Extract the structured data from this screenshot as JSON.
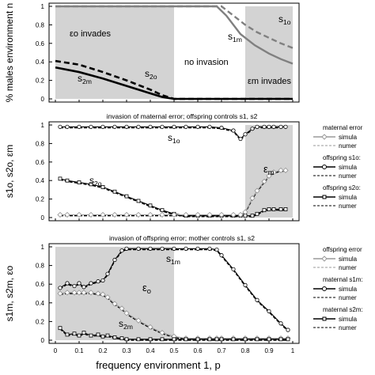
{
  "figure": {
    "xaxis_label": "frequency environment 1, p",
    "x_ticks": [
      "0",
      "0.1",
      "0.2",
      "0.3",
      "0.4",
      "0.5",
      "0.6",
      "0.7",
      "0.8",
      "0.9",
      "1"
    ]
  },
  "chart_data": [
    {
      "type": "line",
      "panel": "top",
      "ylabel": "% males environment n",
      "xlim": [
        0,
        1
      ],
      "ylim": [
        0,
        1
      ],
      "y_ticks": [
        "0",
        "0.2",
        "0.4",
        "0.6",
        "0.8",
        "1"
      ],
      "shaded_regions": [
        [
          0,
          0.5
        ],
        [
          0.8,
          1
        ]
      ],
      "annotations": {
        "eps_o_invades": "εo invades",
        "no_invasion": "no invasion",
        "eps_m_invades": "εm invades"
      },
      "series": [
        {
          "name": "s1o",
          "style": "gray-dashed",
          "x": [
            0,
            0.2,
            0.4,
            0.6,
            0.7,
            0.75,
            0.8,
            0.85,
            0.9,
            0.95,
            1.0
          ],
          "values": [
            1,
            1,
            1,
            1,
            1,
            0.9,
            0.8,
            0.72,
            0.66,
            0.6,
            0.55
          ]
        },
        {
          "name": "s1m",
          "style": "gray-solid",
          "x": [
            0,
            0.2,
            0.4,
            0.6,
            0.68,
            0.72,
            0.78,
            0.84,
            0.9,
            0.95,
            1.0
          ],
          "values": [
            1,
            1,
            1,
            1,
            1,
            0.9,
            0.7,
            0.58,
            0.49,
            0.43,
            0.38
          ]
        },
        {
          "name": "s2o",
          "style": "black-dashed",
          "x": [
            0,
            0.1,
            0.2,
            0.3,
            0.4,
            0.45,
            0.5,
            0.6,
            0.8,
            1.0
          ],
          "values": [
            0.41,
            0.37,
            0.29,
            0.2,
            0.1,
            0.04,
            0.0,
            0.0,
            0.0,
            0.0
          ]
        },
        {
          "name": "s2m",
          "style": "black-solid",
          "x": [
            0,
            0.1,
            0.2,
            0.3,
            0.4,
            0.45,
            0.5,
            0.6,
            0.8,
            1.0
          ],
          "values": [
            0.34,
            0.29,
            0.22,
            0.14,
            0.06,
            0.02,
            0.0,
            0.0,
            0.0,
            0.0
          ]
        }
      ],
      "labels": {
        "s1o": "s1o",
        "s1m": "s1m",
        "s2o": "s2o",
        "s2m": "s2m"
      }
    },
    {
      "type": "line",
      "panel": "middle",
      "title": "invasion of maternal error; offspring controls s1, s2",
      "ylabel": "s1o, s2o, εm",
      "xlim": [
        0,
        1
      ],
      "ylim": [
        0,
        1
      ],
      "y_ticks": [
        "0",
        "0.2",
        "0.4",
        "0.6",
        "0.8",
        "1"
      ],
      "shaded_regions": [
        [
          0.8,
          1
        ]
      ],
      "x": [
        0.02,
        0.05,
        0.1,
        0.15,
        0.2,
        0.25,
        0.3,
        0.35,
        0.4,
        0.45,
        0.5,
        0.55,
        0.6,
        0.65,
        0.7,
        0.75,
        0.78,
        0.8,
        0.83,
        0.85,
        0.88,
        0.9,
        0.92,
        0.95,
        0.97
      ],
      "series": [
        {
          "name": "s1o",
          "values": [
            0.97,
            0.97,
            0.97,
            0.97,
            0.97,
            0.97,
            0.97,
            0.97,
            0.97,
            0.97,
            0.97,
            0.97,
            0.97,
            0.97,
            0.96,
            0.93,
            0.84,
            0.89,
            0.95,
            0.97,
            0.97,
            0.97,
            0.97,
            0.97,
            0.97
          ]
        },
        {
          "name": "s2o",
          "values": [
            0.41,
            0.39,
            0.37,
            0.35,
            0.32,
            0.27,
            0.22,
            0.17,
            0.12,
            0.07,
            0.03,
            0.01,
            0.01,
            0.01,
            0.01,
            0.01,
            0.01,
            0.01,
            0.01,
            0.03,
            0.07,
            0.08,
            0.08,
            0.08,
            0.08
          ]
        },
        {
          "name": "εm",
          "values": [
            0.02,
            0.02,
            0.02,
            0.02,
            0.02,
            0.02,
            0.02,
            0.02,
            0.02,
            0.02,
            0.02,
            0.02,
            0.02,
            0.02,
            0.02,
            0.02,
            0.02,
            0.05,
            0.2,
            0.28,
            0.38,
            0.44,
            0.48,
            0.5,
            0.5
          ]
        }
      ],
      "labels": {
        "s1o": "s1o",
        "s2o": "s2o",
        "em": "εm"
      },
      "legend": [
        {
          "header": "maternal error",
          "items": [
            "simula",
            "numer"
          ]
        },
        {
          "header": "offspring s1o:",
          "items": [
            "simula",
            "numer"
          ]
        },
        {
          "header": "offspring s2o:",
          "items": [
            "simula",
            "numer"
          ]
        }
      ]
    },
    {
      "type": "line",
      "panel": "bottom",
      "title": "invasion of offspring error; mother controls s1, s2",
      "ylabel": "s1m, s2m, εo",
      "xlim": [
        0,
        1
      ],
      "ylim": [
        0,
        1
      ],
      "y_ticks": [
        "0",
        "0.2",
        "0.4",
        "0.6",
        "0.8",
        "1"
      ],
      "shaded_regions": [
        [
          0,
          0.5
        ]
      ],
      "x": [
        0.02,
        0.05,
        0.08,
        0.1,
        0.12,
        0.15,
        0.18,
        0.2,
        0.22,
        0.25,
        0.28,
        0.3,
        0.35,
        0.4,
        0.45,
        0.5,
        0.55,
        0.6,
        0.65,
        0.68,
        0.7,
        0.75,
        0.8,
        0.85,
        0.9,
        0.95,
        0.98
      ],
      "series": [
        {
          "name": "s1m",
          "values": [
            0.55,
            0.6,
            0.57,
            0.6,
            0.56,
            0.6,
            0.62,
            0.63,
            0.7,
            0.85,
            0.95,
            0.97,
            0.97,
            0.97,
            0.97,
            0.97,
            0.97,
            0.97,
            0.97,
            0.96,
            0.9,
            0.75,
            0.58,
            0.42,
            0.3,
            0.17,
            0.1
          ]
        },
        {
          "name": "εo",
          "values": [
            0.49,
            0.5,
            0.5,
            0.5,
            0.5,
            0.5,
            0.49,
            0.48,
            0.45,
            0.38,
            0.33,
            0.28,
            0.2,
            0.13,
            0.07,
            0.03,
            0.01,
            0.01,
            0.01,
            0.01,
            0.01,
            0.01,
            0.01,
            0.01,
            0.01,
            0.01,
            0.01
          ]
        },
        {
          "name": "s2m",
          "values": [
            0.12,
            0.05,
            0.06,
            0.04,
            0.07,
            0.04,
            0.05,
            0.03,
            0.04,
            0.02,
            0.01,
            0.0,
            0.0,
            0.0,
            0.0,
            0.0,
            0.0,
            0.0,
            0.0,
            0.0,
            0.0,
            0.0,
            0.0,
            0.0,
            0.0,
            0.0,
            0.0
          ]
        }
      ],
      "labels": {
        "s1m": "s1m",
        "s2m": "s2m",
        "eo": "εo"
      },
      "legend": [
        {
          "header": "offspring error",
          "items": [
            "simula",
            "numer"
          ]
        },
        {
          "header": "maternal s1m:",
          "items": [
            "simula",
            "numer"
          ]
        },
        {
          "header": "maternal s2m:",
          "items": [
            "simula",
            "numer"
          ]
        }
      ]
    }
  ],
  "colors": {
    "shade": "#d3d3d3",
    "gray_line": "#808080",
    "black_line": "#000000",
    "marker_fill": "#ffffff",
    "marker_gray": "#9a9a9a"
  }
}
